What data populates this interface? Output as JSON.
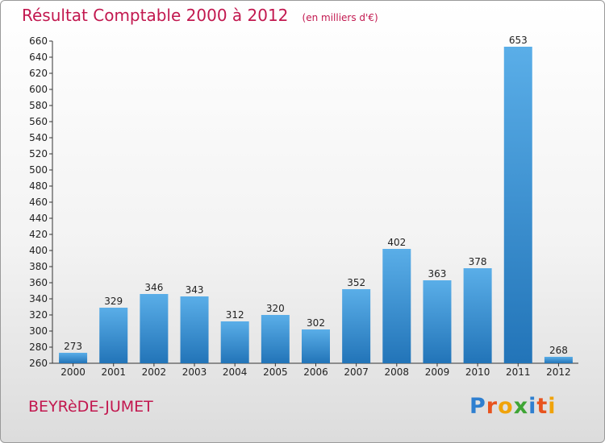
{
  "header": {
    "title": "Résultat Comptable 2000 à 2012",
    "subtitle": "(en milliers d'€)"
  },
  "footer": {
    "commune": "BEYRèDE-JUMET",
    "logo_text": "Proxiti"
  },
  "colors": {
    "accent": "#c2184f",
    "bar_top": "#5aaee8",
    "bar_bottom": "#2274b8",
    "logo": [
      "#2e7fd0",
      "#e8531e",
      "#f0a30a",
      "#3fa535",
      "#2e7fd0",
      "#e8531e",
      "#f0a30a"
    ]
  },
  "chart_data": {
    "type": "bar",
    "categories": [
      "2000",
      "2001",
      "2002",
      "2003",
      "2004",
      "2005",
      "2006",
      "2007",
      "2008",
      "2009",
      "2010",
      "2011",
      "2012"
    ],
    "values": [
      273,
      329,
      346,
      343,
      312,
      320,
      302,
      352,
      402,
      363,
      378,
      653,
      268
    ],
    "ylim": [
      260,
      660
    ],
    "ytick_step": 20,
    "grid": false,
    "data_labels": true
  }
}
